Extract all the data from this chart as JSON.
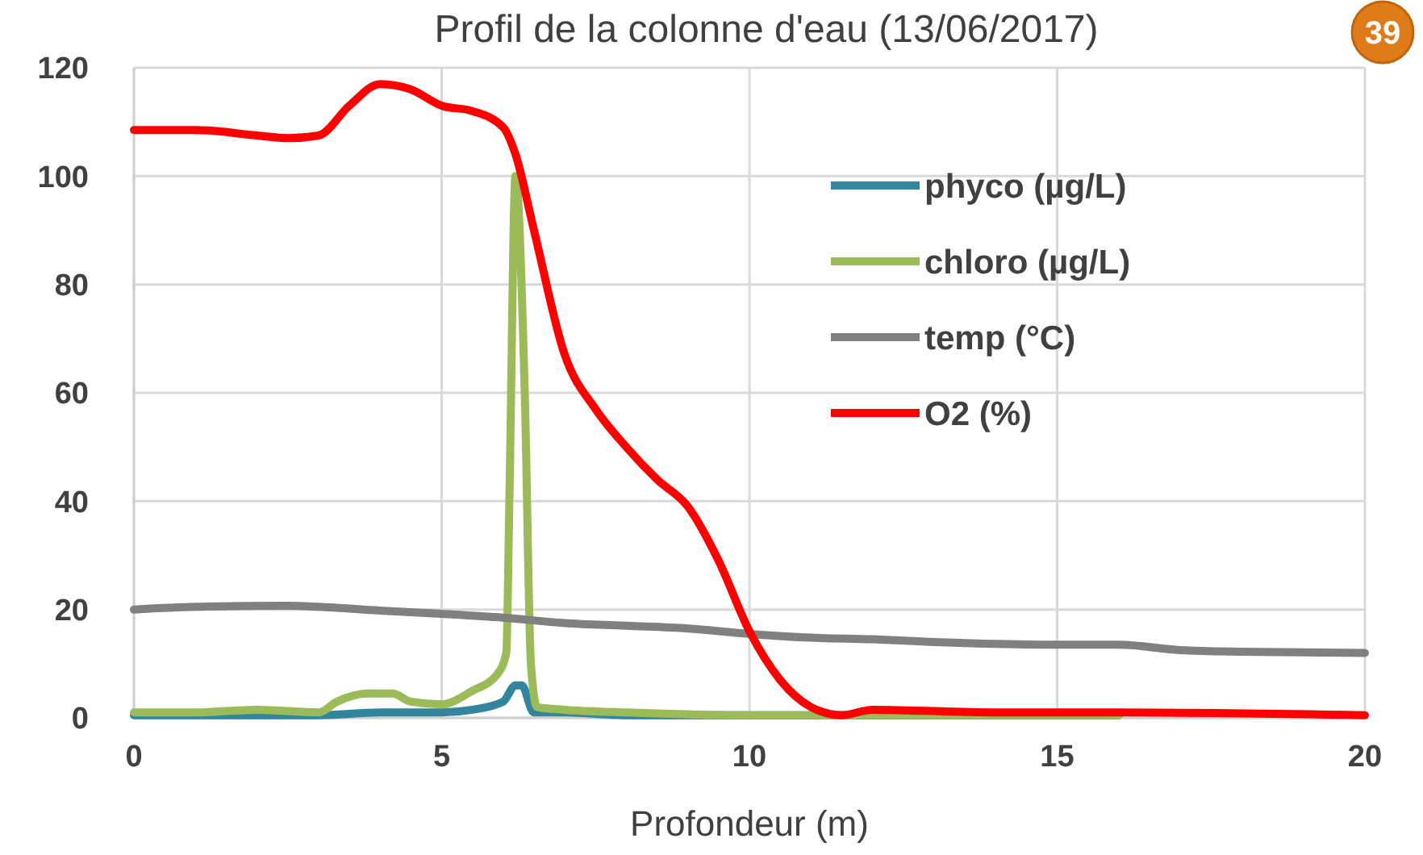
{
  "chart_data": {
    "type": "line",
    "title": "Profil de la colonne d'eau (13/06/2017)",
    "xlabel": "Profondeur (m)",
    "xlim": [
      0,
      20
    ],
    "xticks": [
      0,
      5,
      10,
      15,
      20
    ],
    "ylim": [
      0,
      120
    ],
    "yticks": [
      0,
      20,
      40,
      60,
      80,
      100,
      120
    ],
    "grid": true,
    "legend": "top right",
    "annotations": [
      "39"
    ],
    "series": [
      {
        "name": "phyco (µg/L)",
        "color": "#31859c",
        "x": [
          0,
          3,
          4,
          5,
          5.5,
          6,
          6.2,
          6.3,
          6.5,
          7,
          8,
          12,
          16
        ],
        "values": [
          0.5,
          0.5,
          1,
          1,
          1.5,
          3,
          6,
          6,
          1,
          1,
          0.5,
          0.5,
          0.5
        ]
      },
      {
        "name": "chloro (µg/L)",
        "color": "#9bbb59",
        "x": [
          0,
          1,
          2,
          3,
          3.3,
          3.8,
          4.2,
          4.5,
          5,
          5.5,
          5.9,
          6.05,
          6.1,
          6.2,
          6.35,
          6.45,
          6.55,
          7,
          8,
          10,
          12,
          16
        ],
        "values": [
          1,
          1,
          1.5,
          1,
          3,
          4.5,
          4.5,
          3,
          2.5,
          5,
          8,
          12,
          40,
          100,
          60,
          10,
          2,
          1.5,
          1,
          0.5,
          0.5,
          0.5
        ]
      },
      {
        "name": "temp (°C)",
        "color": "#808080",
        "x": [
          0,
          1,
          2.5,
          3,
          4,
          5,
          6,
          7,
          8,
          9,
          10,
          11,
          12,
          13,
          15,
          16,
          17,
          18,
          20
        ],
        "values": [
          20,
          20.5,
          20.7,
          20.5,
          19.8,
          19.2,
          18.5,
          17.5,
          17,
          16.5,
          15.5,
          14.8,
          14.5,
          14,
          13.5,
          13.5,
          12.5,
          12.2,
          12
        ]
      },
      {
        "name": "O2 (%)",
        "color": "#ff0000",
        "x": [
          0,
          1,
          2,
          2.5,
          3,
          3.5,
          4,
          4.5,
          5,
          5.5,
          6,
          6.2,
          6.5,
          7,
          7.5,
          8,
          8.5,
          9,
          9.5,
          10,
          10.5,
          11,
          11.5,
          12,
          14,
          16,
          20
        ],
        "values": [
          108.5,
          108.5,
          107.5,
          107,
          107.5,
          113,
          117,
          116,
          113,
          112,
          109,
          104,
          90,
          67,
          57,
          50,
          44,
          39,
          29,
          16,
          7,
          2,
          0.5,
          1.5,
          1,
          1,
          0.5
        ]
      }
    ]
  }
}
